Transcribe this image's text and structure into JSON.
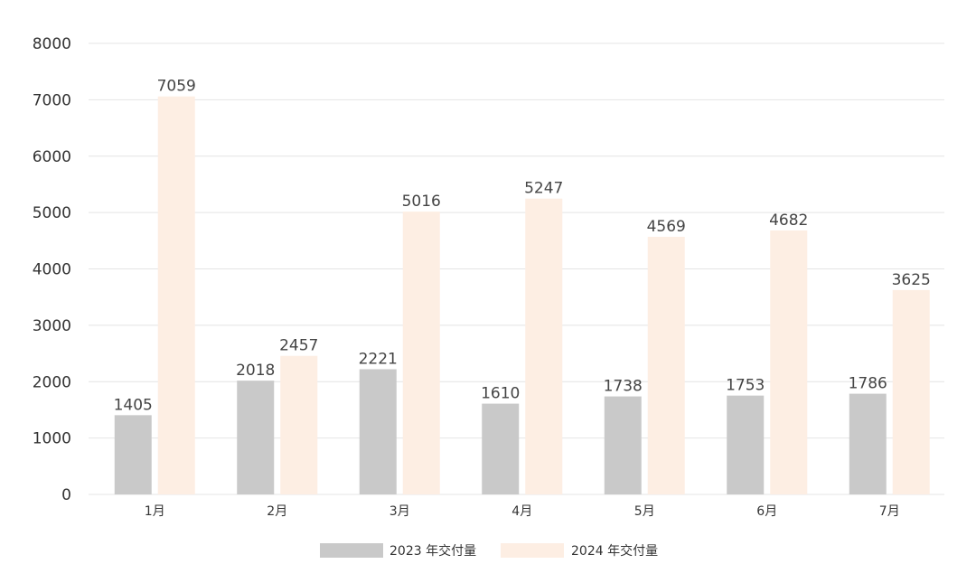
{
  "chart_data": {
    "type": "bar",
    "title": "",
    "xlabel": "",
    "ylabel": "",
    "ylim": [
      0,
      8000
    ],
    "yticks": [
      0,
      1000,
      2000,
      3000,
      4000,
      5000,
      6000,
      7000,
      8000
    ],
    "grid": true,
    "legend_position": "bottom-center",
    "categories": [
      "1月",
      "2月",
      "3月",
      "4月",
      "5月",
      "6月",
      "7月"
    ],
    "series": [
      {
        "name": "2023 年交付量",
        "color": "#c9c9c9",
        "values": [
          1405,
          2018,
          2221,
          1610,
          1738,
          1753,
          1786
        ]
      },
      {
        "name": "2024 年交付量",
        "color": "#fdeee3",
        "values": [
          7059,
          2457,
          5016,
          5247,
          4569,
          4682,
          3625
        ]
      }
    ]
  }
}
